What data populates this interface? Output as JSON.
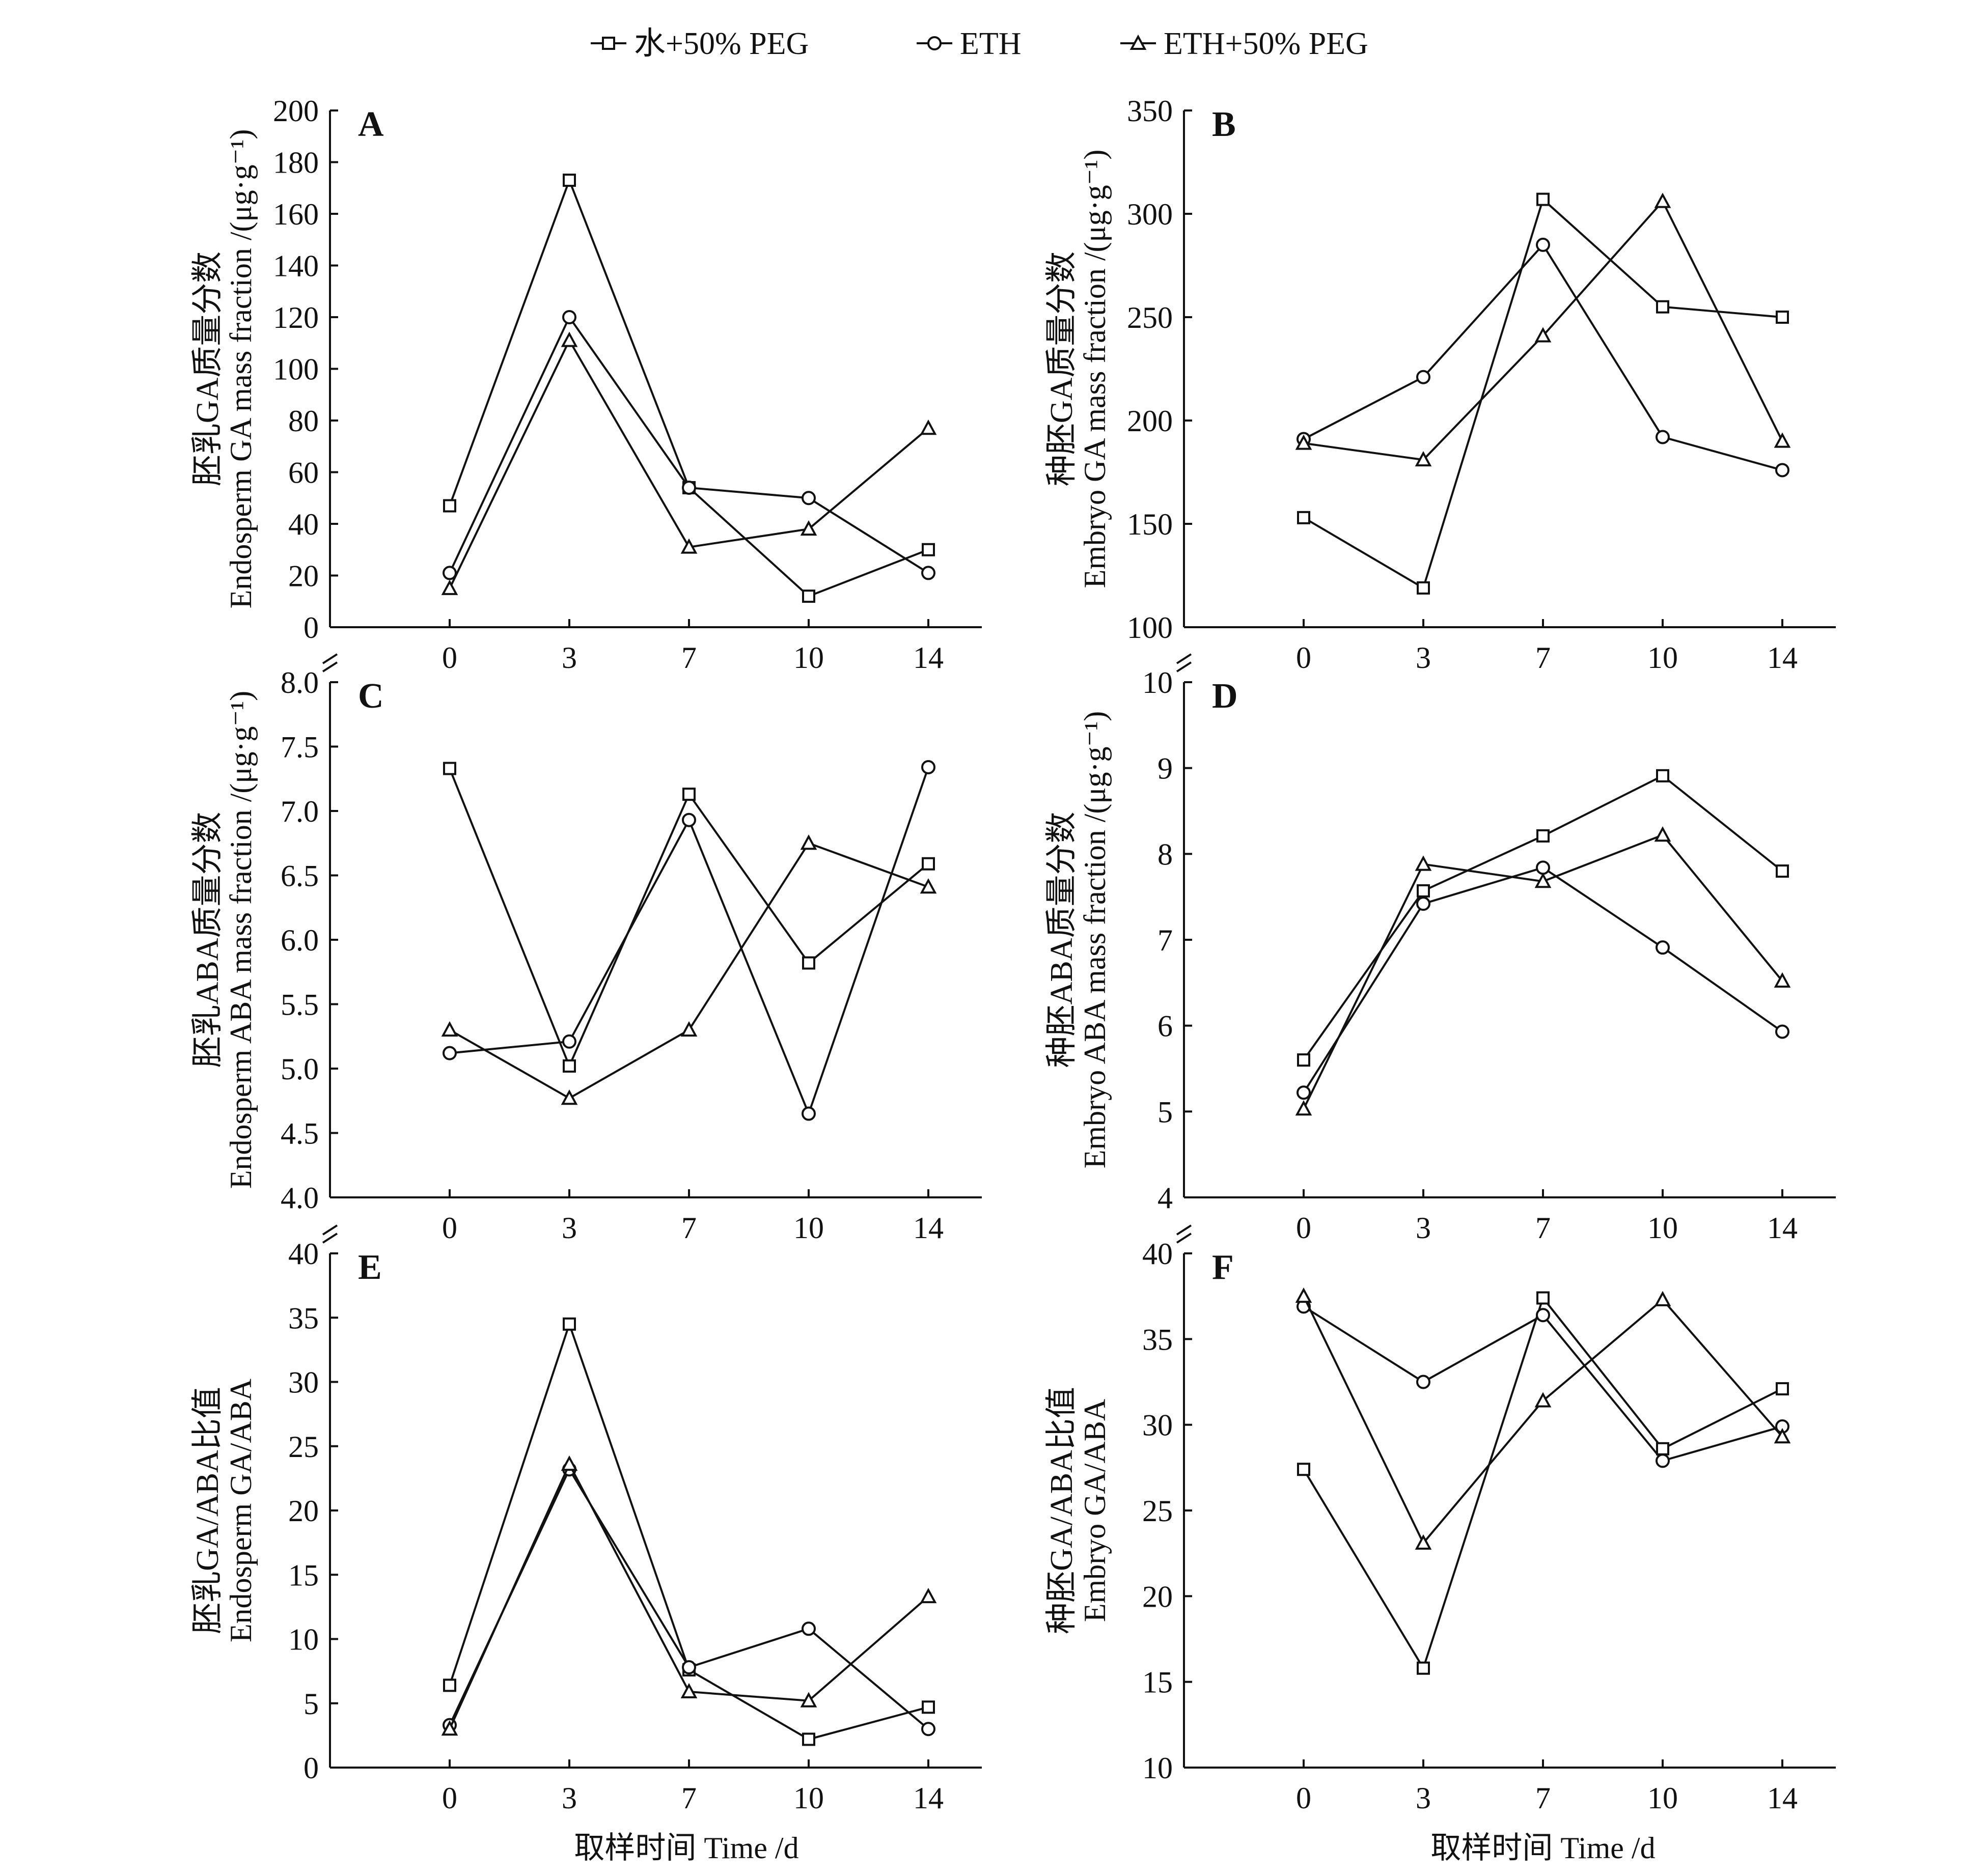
{
  "legend": [
    {
      "label": "水+50% PEG",
      "marker": "square"
    },
    {
      "label": "ETH",
      "marker": "circle"
    },
    {
      "label": "ETH+50% PEG",
      "marker": "triangle"
    }
  ],
  "x_axis_label": "取样时间 Time /d",
  "chart_data": [
    {
      "type": "line",
      "panel": "A",
      "ylabel_cn": "胚乳GA质量分数",
      "ylabel_en": "Endosperm GA mass fraction /(μg·g⁻¹)",
      "categories": [
        "0",
        "3",
        "7",
        "10",
        "14"
      ],
      "ylim": [
        0,
        200
      ],
      "yticks": [
        0,
        20,
        40,
        60,
        80,
        100,
        120,
        140,
        160,
        180,
        200
      ],
      "axis_break": false,
      "series": [
        {
          "name": "水+50% PEG",
          "values": [
            47,
            173,
            54,
            12,
            30
          ]
        },
        {
          "name": "ETH",
          "values": [
            21,
            120,
            54,
            50,
            21
          ]
        },
        {
          "name": "ETH+50% PEG",
          "values": [
            15,
            111,
            31,
            38,
            77
          ]
        }
      ]
    },
    {
      "type": "line",
      "panel": "B",
      "ylabel_cn": "种胚GA质量分数",
      "ylabel_en": "Embryo GA mass fraction /(μg·g⁻¹)",
      "categories": [
        "0",
        "3",
        "7",
        "10",
        "14"
      ],
      "ylim": [
        100,
        350
      ],
      "yticks": [
        100,
        150,
        200,
        250,
        300,
        350
      ],
      "axis_break": false,
      "series": [
        {
          "name": "水+50% PEG",
          "values": [
            153,
            119,
            307,
            255,
            250
          ]
        },
        {
          "name": "ETH",
          "values": [
            191,
            221,
            285,
            192,
            176
          ]
        },
        {
          "name": "ETH+50% PEG",
          "values": [
            189,
            181,
            241,
            306,
            190
          ]
        }
      ]
    },
    {
      "type": "line",
      "panel": "C",
      "ylabel_cn": "胚乳ABA质量分数",
      "ylabel_en": "Endosperm ABA mass fraction /(μg·g⁻¹)",
      "categories": [
        "0",
        "3",
        "7",
        "10",
        "14"
      ],
      "ylim": [
        4.0,
        8.0
      ],
      "yticks": [
        4.0,
        4.5,
        5.0,
        5.5,
        6.0,
        6.5,
        7.0,
        7.5,
        8.0
      ],
      "axis_break": true,
      "series": [
        {
          "name": "水+50% PEG",
          "values": [
            7.33,
            5.02,
            7.13,
            5.82,
            6.59
          ]
        },
        {
          "name": "ETH",
          "values": [
            5.12,
            5.21,
            6.93,
            4.65,
            7.34
          ]
        },
        {
          "name": "ETH+50% PEG",
          "values": [
            5.3,
            4.77,
            5.3,
            6.75,
            6.41
          ]
        }
      ]
    },
    {
      "type": "line",
      "panel": "D",
      "ylabel_cn": "种胚ABA质量分数",
      "ylabel_en": "Embryo ABA mass fraction /(μg·g⁻¹)",
      "categories": [
        "0",
        "3",
        "7",
        "10",
        "14"
      ],
      "ylim": [
        4,
        10
      ],
      "yticks": [
        4,
        5,
        6,
        7,
        8,
        9,
        10
      ],
      "axis_break": true,
      "series": [
        {
          "name": "水+50% PEG",
          "values": [
            5.6,
            7.57,
            8.21,
            8.91,
            7.8
          ]
        },
        {
          "name": "ETH",
          "values": [
            5.22,
            7.42,
            7.84,
            6.91,
            5.93
          ]
        },
        {
          "name": "ETH+50% PEG",
          "values": [
            5.03,
            7.88,
            7.68,
            8.22,
            6.52
          ]
        }
      ]
    },
    {
      "type": "line",
      "panel": "E",
      "ylabel_cn": "胚乳GA/ABA比值",
      "ylabel_en": "Endosperm GA/ABA",
      "categories": [
        "0",
        "3",
        "7",
        "10",
        "14"
      ],
      "ylim": [
        0,
        40
      ],
      "yticks": [
        0,
        5,
        10,
        15,
        20,
        25,
        30,
        35,
        40
      ],
      "axis_break": true,
      "series": [
        {
          "name": "水+50% PEG",
          "values": [
            6.4,
            34.5,
            7.6,
            2.2,
            4.7
          ]
        },
        {
          "name": "ETH",
          "values": [
            3.3,
            23.2,
            7.8,
            10.8,
            3.0
          ]
        },
        {
          "name": "ETH+50% PEG",
          "values": [
            3.0,
            23.6,
            5.9,
            5.2,
            13.3
          ]
        }
      ]
    },
    {
      "type": "line",
      "panel": "F",
      "ylabel_cn": "种胚GA/ABA比值",
      "ylabel_en": "Embryo GA/ABA",
      "categories": [
        "0",
        "3",
        "7",
        "10",
        "14"
      ],
      "ylim": [
        10,
        40
      ],
      "yticks": [
        10,
        15,
        20,
        25,
        30,
        35,
        40
      ],
      "axis_break": true,
      "series": [
        {
          "name": "水+50% PEG",
          "values": [
            27.4,
            15.8,
            37.4,
            28.6,
            32.1
          ]
        },
        {
          "name": "ETH",
          "values": [
            36.9,
            32.5,
            36.4,
            27.9,
            29.9
          ]
        },
        {
          "name": "ETH+50% PEG",
          "values": [
            37.5,
            23.1,
            31.4,
            37.3,
            29.3
          ]
        }
      ]
    }
  ]
}
